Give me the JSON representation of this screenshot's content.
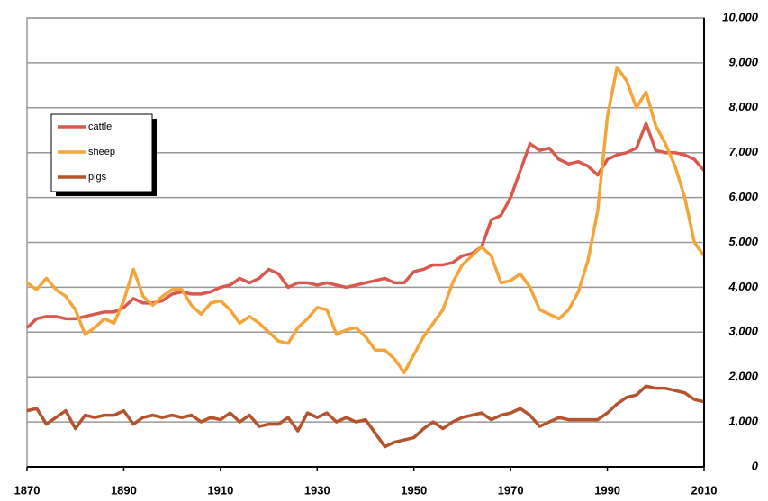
{
  "chart_data": {
    "type": "line",
    "x": [
      1870,
      1872,
      1874,
      1876,
      1878,
      1880,
      1882,
      1884,
      1886,
      1888,
      1890,
      1892,
      1894,
      1896,
      1898,
      1900,
      1902,
      1904,
      1906,
      1908,
      1910,
      1912,
      1914,
      1916,
      1918,
      1920,
      1922,
      1924,
      1926,
      1928,
      1930,
      1932,
      1934,
      1936,
      1938,
      1940,
      1942,
      1944,
      1946,
      1948,
      1950,
      1952,
      1954,
      1956,
      1958,
      1960,
      1962,
      1964,
      1966,
      1968,
      1970,
      1972,
      1974,
      1976,
      1978,
      1980,
      1982,
      1984,
      1986,
      1988,
      1990,
      1992,
      1994,
      1996,
      1998,
      2000,
      2002,
      2004,
      2006,
      2008,
      2010
    ],
    "series": [
      {
        "name": "cattle",
        "color": "#d9594f",
        "values": [
          3100,
          3300,
          3350,
          3350,
          3300,
          3300,
          3350,
          3400,
          3450,
          3450,
          3550,
          3750,
          3650,
          3650,
          3700,
          3850,
          3900,
          3850,
          3850,
          3900,
          4000,
          4050,
          4200,
          4100,
          4200,
          4400,
          4300,
          4000,
          4100,
          4100,
          4050,
          4100,
          4050,
          4000,
          4050,
          4100,
          4150,
          4200,
          4100,
          4100,
          4350,
          4400,
          4500,
          4500,
          4550,
          4700,
          4750,
          4900,
          5500,
          5600,
          6000,
          6600,
          7200,
          7050,
          7100,
          6850,
          6750,
          6800,
          6700,
          6500,
          6850,
          6950,
          7000,
          7100,
          7650,
          7050,
          7000,
          7000,
          6950,
          6850,
          6600
        ]
      },
      {
        "name": "sheep",
        "color": "#f5a43a",
        "values": [
          4100,
          3950,
          4200,
          3950,
          3800,
          3500,
          2950,
          3100,
          3300,
          3200,
          3700,
          4400,
          3800,
          3600,
          3800,
          3950,
          3950,
          3600,
          3400,
          3650,
          3700,
          3500,
          3200,
          3350,
          3200,
          3000,
          2800,
          2750,
          3100,
          3300,
          3550,
          3500,
          2950,
          3050,
          3100,
          2900,
          2600,
          2600,
          2400,
          2100,
          2500,
          2900,
          3200,
          3500,
          4100,
          4500,
          4700,
          4900,
          4700,
          4100,
          4150,
          4300,
          4000,
          3500,
          3400,
          3300,
          3500,
          3900,
          4600,
          5700,
          7800,
          8900,
          8600,
          8000,
          8350,
          7600,
          7200,
          6700,
          6000,
          5000,
          4700
        ]
      },
      {
        "name": "pigs",
        "color": "#b4532c",
        "values": [
          1250,
          1300,
          950,
          1100,
          1250,
          850,
          1150,
          1100,
          1150,
          1150,
          1250,
          950,
          1100,
          1150,
          1100,
          1150,
          1100,
          1150,
          1000,
          1100,
          1050,
          1200,
          1000,
          1150,
          900,
          950,
          950,
          1100,
          800,
          1200,
          1100,
          1200,
          1000,
          1100,
          1000,
          1050,
          750,
          450,
          550,
          600,
          650,
          850,
          1000,
          850,
          1000,
          1100,
          1150,
          1200,
          1050,
          1150,
          1200,
          1300,
          1150,
          900,
          1000,
          1100,
          1050,
          1050,
          1050,
          1050,
          1200,
          1400,
          1550,
          1600,
          1800,
          1750,
          1750,
          1700,
          1650,
          1500,
          1450
        ]
      }
    ],
    "xlim": [
      1870,
      2010
    ],
    "xticks": [
      1870,
      1890,
      1910,
      1930,
      1950,
      1970,
      1990,
      2010
    ],
    "ylim": [
      0,
      10000
    ],
    "yticks": [
      0,
      {
        "value": 1000,
        "label": "1,000"
      },
      {
        "value": 2000,
        "label": "2,000"
      },
      {
        "value": 3000,
        "label": "3,000"
      },
      {
        "value": 4000,
        "label": "4,000"
      },
      {
        "value": 5000,
        "label": "5,000"
      },
      {
        "value": 6000,
        "label": "6,000"
      },
      {
        "value": 7000,
        "label": "7,000"
      },
      {
        "value": 8000,
        "label": "8,000"
      },
      {
        "value": 9000,
        "label": "9,000"
      },
      {
        "value": 10000,
        "label": "10,000"
      }
    ],
    "grid": true
  }
}
